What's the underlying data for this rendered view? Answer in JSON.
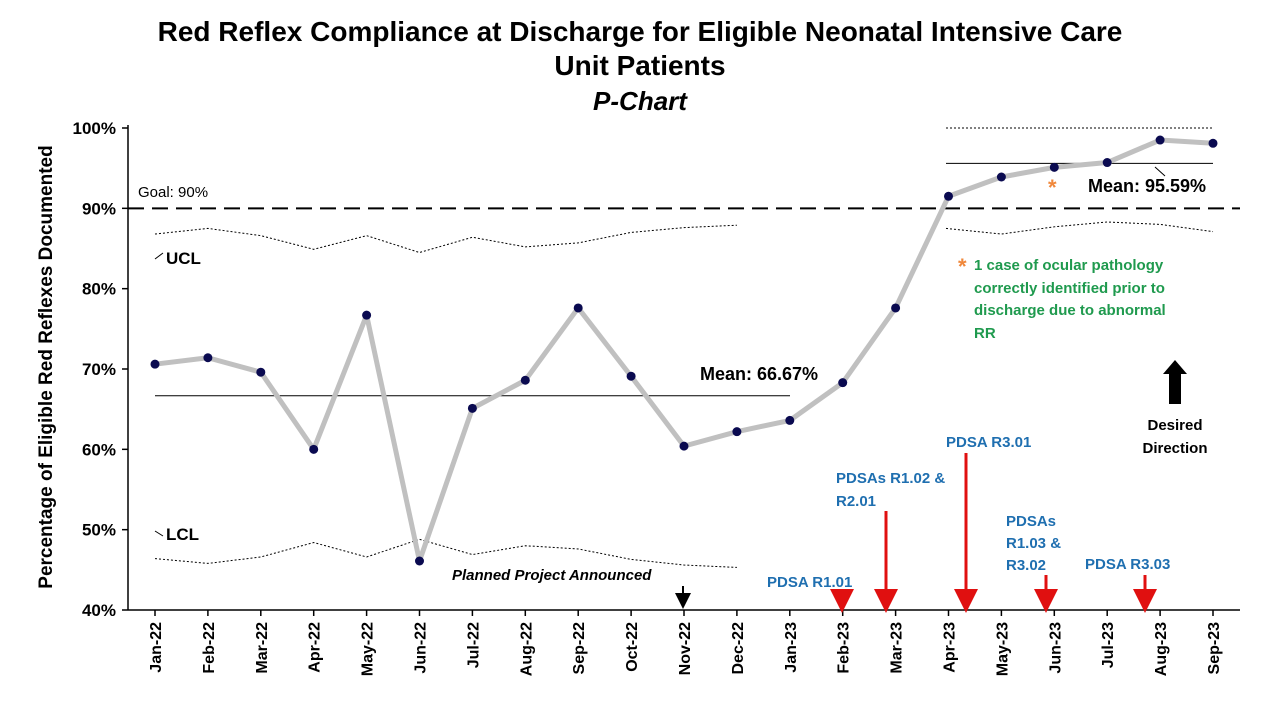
{
  "title": {
    "line1": "Red Reflex Compliance at Discharge for Eligible Neonatal Intensive Care",
    "line2": "Unit Patients",
    "line3": "P-Chart"
  },
  "chart_data": {
    "type": "line",
    "title": "Red Reflex Compliance at Discharge for Eligible Neonatal Intensive Care Unit Patients",
    "subtitle": "P-Chart",
    "ylabel": "Percentage of Eligible  Red Reflexes Documented",
    "xlabel": "",
    "ylim": [
      40,
      100
    ],
    "y_ticks": [
      "40%",
      "50%",
      "60%",
      "70%",
      "80%",
      "90%",
      "100%"
    ],
    "categories": [
      "Jan-22",
      "Feb-22",
      "Mar-22",
      "Apr-22",
      "May-22",
      "Jun-22",
      "Jul-22",
      "Aug-22",
      "Sep-22",
      "Oct-22",
      "Nov-22",
      "Dec-22",
      "Jan-23",
      "Feb-23",
      "Mar-23",
      "Apr-23",
      "May-23",
      "Jun-23",
      "Jul-23",
      "Aug-23",
      "Sep-23"
    ],
    "series": [
      {
        "values": [
          70.6,
          71.4,
          69.6,
          60.0,
          76.7,
          46.1,
          65.1,
          68.6,
          77.6,
          69.1,
          60.4,
          62.2,
          63.6,
          68.3,
          77.6,
          91.5,
          93.9,
          95.1,
          95.7,
          98.5,
          98.1
        ]
      }
    ],
    "ucl_phase1": [
      86.8,
      87.5,
      86.6,
      84.9,
      86.6,
      84.5,
      86.4,
      85.2,
      85.7,
      87.0,
      87.6,
      87.9
    ],
    "lcl_phase1": [
      46.4,
      45.8,
      46.6,
      48.4,
      46.6,
      48.8,
      46.9,
      48.0,
      47.6,
      46.3,
      45.6,
      45.3
    ],
    "ucl_phase2": [
      100,
      100,
      100,
      100,
      100,
      100
    ],
    "lcl_phase2": [
      87.5,
      86.8,
      87.7,
      88.3,
      88.0,
      87.1
    ],
    "mean_phase1": 66.67,
    "mean_phase2": 95.59,
    "goal": 90,
    "colors": {
      "series": "#c0c0c0",
      "marker": "#0a0a50",
      "arrow": "#e01010",
      "blue_text": "#1f6fb0",
      "green_text": "#1f9a4e",
      "asterisk": "#f0883c"
    }
  },
  "labels": {
    "goal": "Goal: 90%",
    "ucl": "UCL",
    "lcl": "LCL",
    "mean1": "Mean: 66.67%",
    "mean2": "Mean: 95.59%",
    "planned": "Planned Project Announced",
    "pdsa_r101": "PDSA R1.01",
    "pdsa_r102_l1": "PDSAs R1.02 &",
    "pdsa_r102_l2": "R2.01",
    "pdsa_r301": "PDSA R3.01",
    "pdsa_r103_l1": "PDSAs",
    "pdsa_r103_l2": "R1.03 &",
    "pdsa_r103_l3": "R3.02",
    "pdsa_r303": "PDSA R3.03",
    "asterisk": "*",
    "note_l1": "1 case of ocular pathology",
    "note_l2": "correctly identified prior to",
    "note_l3": "discharge due to abnormal",
    "note_l4": "RR",
    "desired_l1": "Desired",
    "desired_l2": "Direction"
  }
}
